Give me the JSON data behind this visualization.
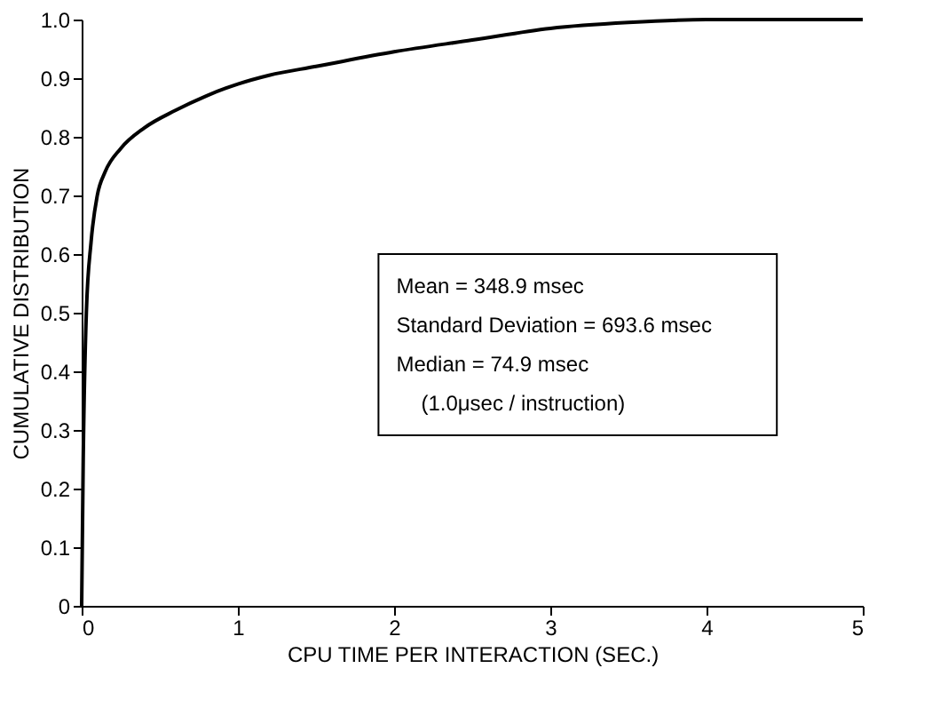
{
  "chart_data": {
    "type": "line",
    "xlabel": "CPU TIME PER INTERACTION (SEC.)",
    "ylabel": "CUMULATIVE DISTRIBUTION",
    "x": [
      0,
      0.01,
      0.03,
      0.06,
      0.1,
      0.15,
      0.25,
      0.4,
      0.6,
      0.8,
      1.0,
      1.2,
      1.5,
      2.0,
      2.5,
      3.0,
      3.5,
      4.0,
      5.0
    ],
    "series": [
      {
        "color": "#000000",
        "values": [
          0,
          0.25,
          0.5,
          0.62,
          0.7,
          0.74,
          0.78,
          0.815,
          0.845,
          0.87,
          0.89,
          0.905,
          0.92,
          0.945,
          0.965,
          0.985,
          0.995,
          1.0,
          1.0
        ]
      }
    ],
    "xlim": [
      0,
      5
    ],
    "xticks": [
      0,
      1,
      2,
      3,
      4,
      5
    ],
    "ylim": [
      0,
      1
    ],
    "yticks": [
      0,
      0.1,
      0.2,
      0.3,
      0.4,
      0.5,
      0.6,
      0.7,
      0.8,
      0.9,
      {
        "value": 1,
        "label": "1.0"
      }
    ],
    "grid": false,
    "line_style": "solid",
    "annotations": [
      "Mean = 348.9 msec",
      "Standard Deviation = 693.6 msec",
      "Median = 74.9 msec",
      "(1.0μsec / instruction)"
    ]
  }
}
